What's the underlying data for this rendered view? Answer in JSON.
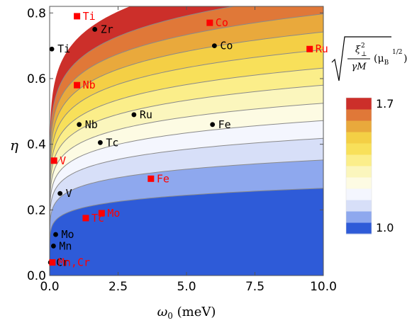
{
  "chart_data": {
    "type": "heatmap",
    "title": "",
    "xlabel": "ω",
    "xlabel_sub": "0",
    "xlabel_unit": " (meV)",
    "ylabel": "η",
    "xlim": [
      0.0,
      10.0
    ],
    "ylim": [
      0.0,
      0.82
    ],
    "x_ticks": [
      0.0,
      2.5,
      5.0,
      7.5,
      10.0
    ],
    "x_tick_labels": [
      "0.0",
      "2.5",
      "5.0",
      "7.5",
      "10.0"
    ],
    "y_ticks": [
      0.0,
      0.2,
      0.4,
      0.6,
      0.8
    ],
    "y_tick_labels": [
      "0.0",
      "0.2",
      "0.4",
      "0.6",
      "0.8"
    ],
    "contour_bands": [
      {
        "color": "#2e5bd8",
        "eta_at_omega_10": 0.266
      },
      {
        "color": "#8ea8ee",
        "eta_at_omega_10": 0.352
      },
      {
        "color": "#d7dff8",
        "eta_at_omega_10": 0.418
      },
      {
        "color": "#f4f6fe",
        "eta_at_omega_10": 0.472
      },
      {
        "color": "#fdfbe3",
        "eta_at_omega_10": 0.525
      },
      {
        "color": "#fbf6bd",
        "eta_at_omega_10": 0.58
      },
      {
        "color": "#fbee8a",
        "eta_at_omega_10": 0.632
      },
      {
        "color": "#f8e05a",
        "eta_at_omega_10": 0.688
      },
      {
        "color": "#f4cf45",
        "eta_at_omega_10": 0.742
      },
      {
        "color": "#e9a93c",
        "eta_at_omega_10": 0.797
      },
      {
        "color": "#e07838",
        "eta_at_omega_10": 0.86
      },
      {
        "color": "#cc2f2a",
        "eta_at_omega_10": 0.95
      }
    ],
    "series": [
      {
        "marker": "circle",
        "color": "#000000",
        "points": [
          {
            "label": "Ti",
            "x": 0.08,
            "y": 0.69
          },
          {
            "label": "Zr",
            "x": 1.65,
            "y": 0.75
          },
          {
            "label": "Co",
            "x": 6.02,
            "y": 0.7
          },
          {
            "label": "Nb",
            "x": 1.08,
            "y": 0.46
          },
          {
            "label": "Ru",
            "x": 3.08,
            "y": 0.49
          },
          {
            "label": "Fe",
            "x": 5.95,
            "y": 0.46
          },
          {
            "label": "Tc",
            "x": 1.85,
            "y": 0.405
          },
          {
            "label": "V",
            "x": 0.38,
            "y": 0.25
          },
          {
            "label": "Mo",
            "x": 0.22,
            "y": 0.125
          },
          {
            "label": "Mn",
            "x": 0.14,
            "y": 0.09
          },
          {
            "label": "Cr",
            "x": 0.03,
            "y": 0.04
          }
        ]
      },
      {
        "marker": "square",
        "color": "#ff0000",
        "points": [
          {
            "label": "Ti",
            "x": 1.0,
            "y": 0.79
          },
          {
            "label": "Co",
            "x": 5.85,
            "y": 0.77
          },
          {
            "label": "Ru",
            "x": 9.5,
            "y": 0.69
          },
          {
            "label": "Nb",
            "x": 1.0,
            "y": 0.58
          },
          {
            "label": "V",
            "x": 0.16,
            "y": 0.35
          },
          {
            "label": "Fe",
            "x": 3.7,
            "y": 0.295
          },
          {
            "label": "Mo",
            "x": 1.9,
            "y": 0.19
          },
          {
            "label": "Tc",
            "x": 1.32,
            "y": 0.175
          },
          {
            "label": "Mn,Cr",
            "x": 0.1,
            "y": 0.04
          }
        ]
      }
    ],
    "legend": {
      "title_symbol": "ξ",
      "title_super": "2",
      "title_sub": "⊥",
      "title_denominator": "γM",
      "title_unit": "(μ",
      "title_unit_sub": "B",
      "title_unit_super": "1/2",
      "min_label": "1.0",
      "max_label": "1.7",
      "min": 1.0,
      "max": 1.7
    }
  }
}
